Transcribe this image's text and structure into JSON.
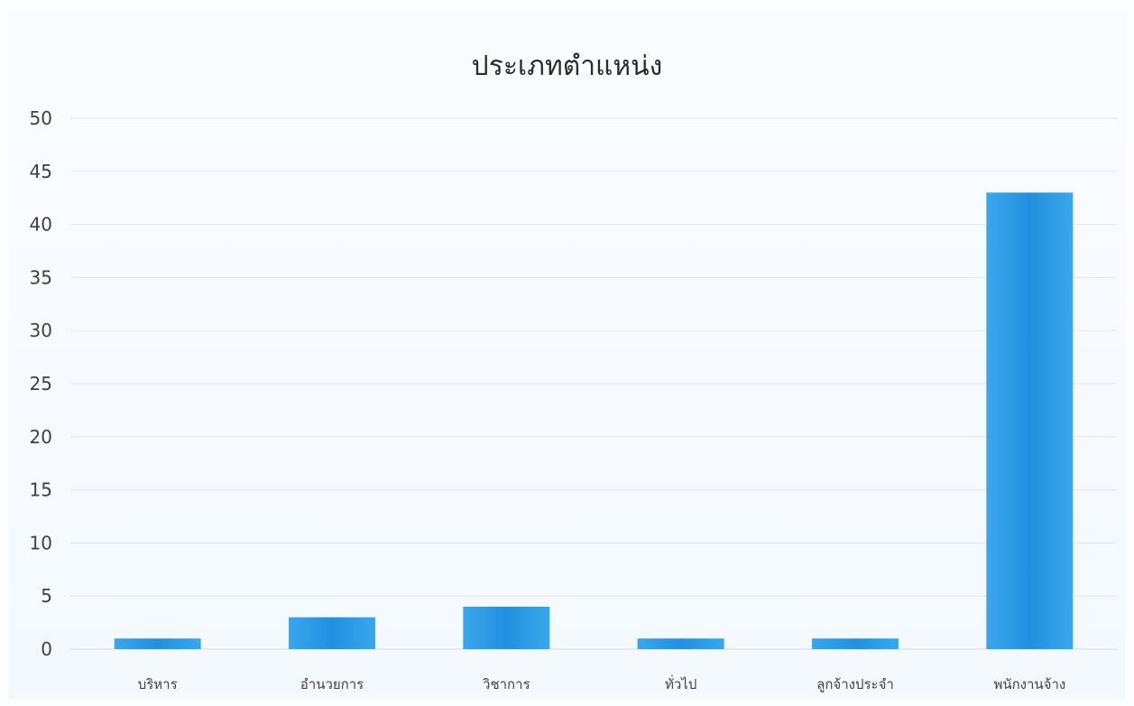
{
  "chart_data": {
    "type": "bar",
    "title": "ประเภทตำแหน่ง",
    "xlabel": "",
    "ylabel": "",
    "categories": [
      "บริหาร",
      "อำนวยการ",
      "วิชาการ",
      "ทั่วไป",
      "ลูกจ้างประจำ",
      "พนักงานจ้าง"
    ],
    "values": [
      1,
      3,
      4,
      1,
      1,
      43
    ],
    "ylim": [
      0,
      50
    ],
    "yticks": [
      0,
      5,
      10,
      15,
      20,
      25,
      30,
      35,
      40,
      45,
      50
    ],
    "grid": true,
    "legend": "none",
    "bar_color": "#2b9ae4"
  }
}
